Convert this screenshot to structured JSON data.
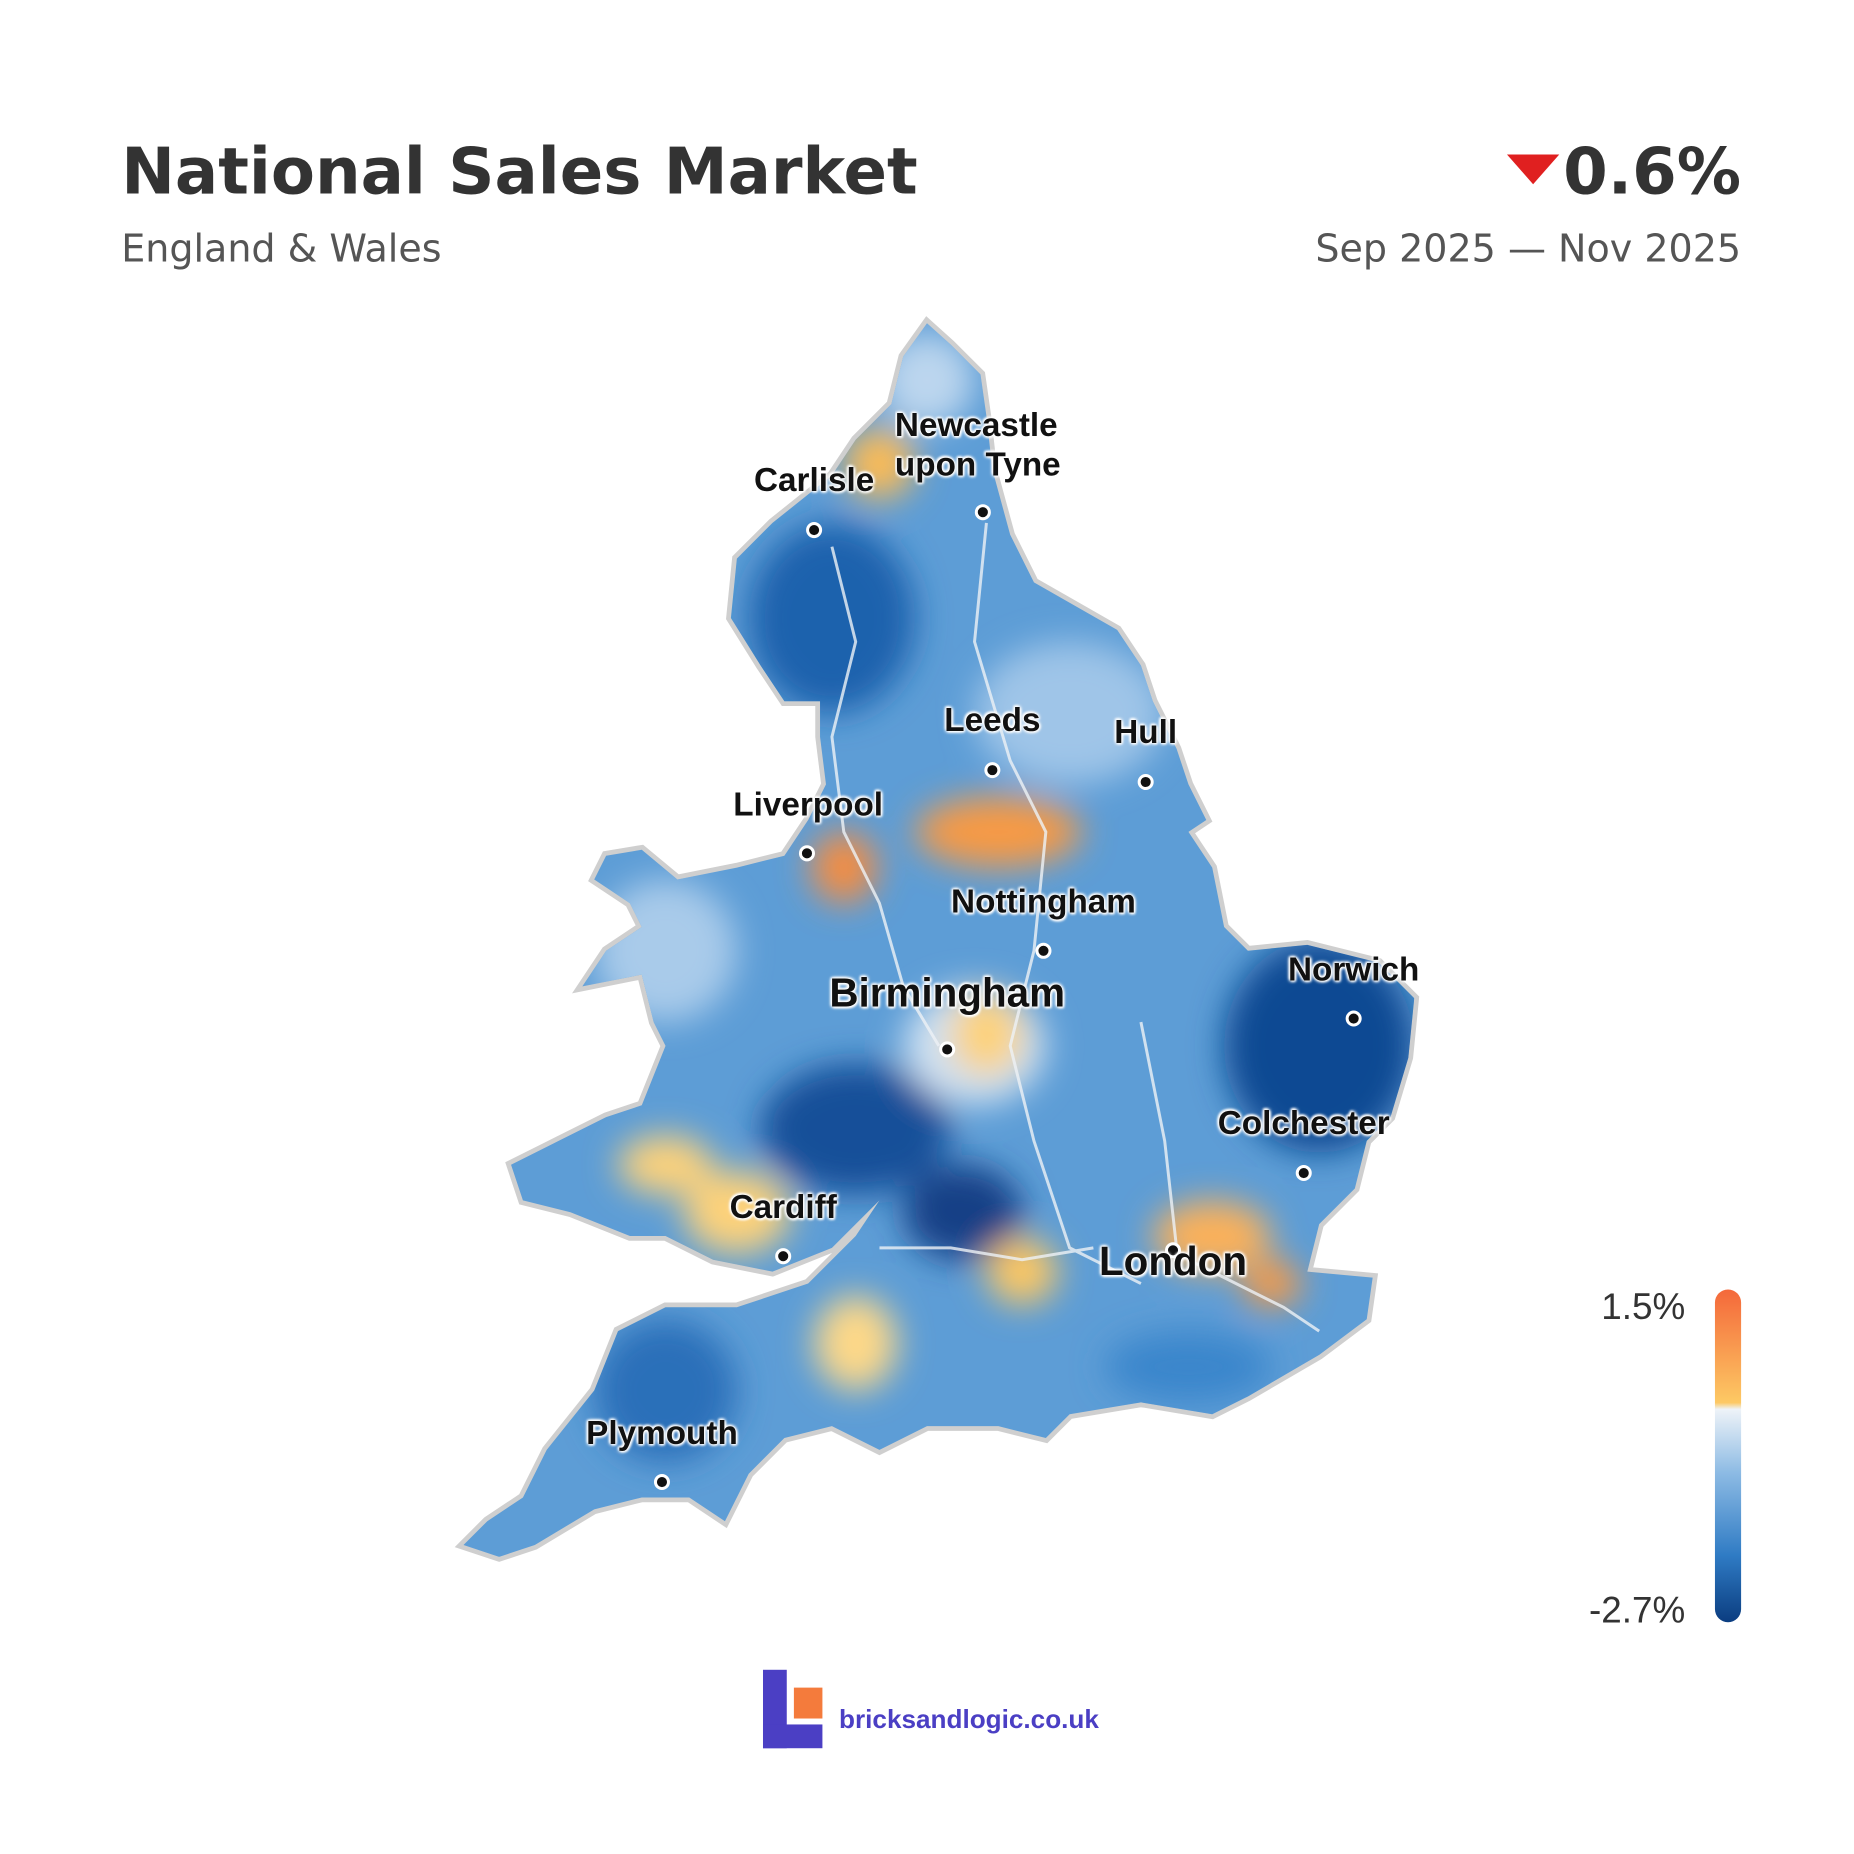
{
  "header": {
    "title": "National Sales Market",
    "subtitle": "England & Wales",
    "change": "0.6%",
    "period": "Sep 2025 — Nov 2025"
  },
  "cities": [
    {
      "name": "Newcastle upon Tyne"
    },
    {
      "name": "Carlisle"
    },
    {
      "name": "Leeds"
    },
    {
      "name": "Hull"
    },
    {
      "name": "Liverpool"
    },
    {
      "name": "Nottingham"
    },
    {
      "name": "Norwich"
    },
    {
      "name": "Birmingham"
    },
    {
      "name": "Colchester"
    },
    {
      "name": "Cardiff"
    },
    {
      "name": "London"
    },
    {
      "name": "Plymouth"
    }
  ],
  "legend": {
    "max": "1.5%",
    "min": "-2.7%"
  },
  "footer": {
    "brand": "bricksandlogic.co.uk"
  }
}
